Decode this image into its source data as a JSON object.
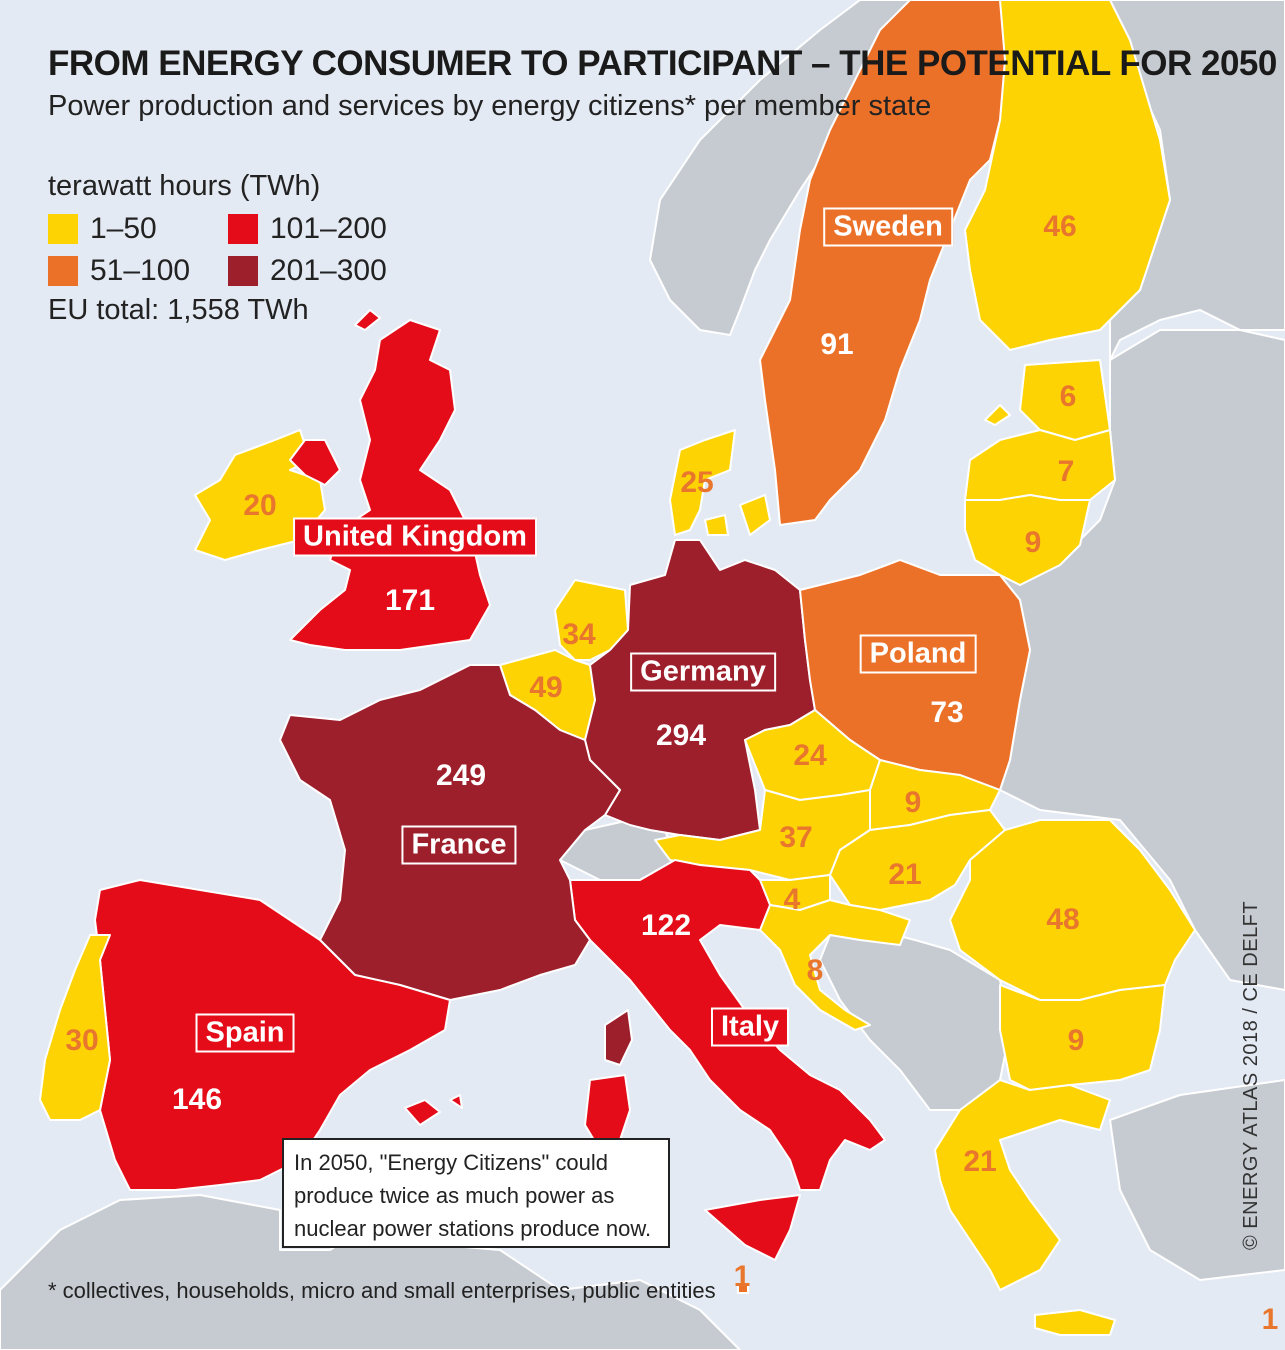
{
  "title": "FROM ENERGY CONSUMER TO PARTICIPANT – THE POTENTIAL FOR 2050",
  "subtitle": "Power production and services by energy citizens* per member state",
  "legend": {
    "title": "terawatt hours (TWh)",
    "items": [
      {
        "label": "1–50",
        "color": "#fed304"
      },
      {
        "label": "51–100",
        "color": "#ec7128"
      },
      {
        "label": "101–200",
        "color": "#e40c18"
      },
      {
        "label": "201–300",
        "color": "#9e1f2c"
      }
    ],
    "eu_total": "EU total: 1,558 TWh"
  },
  "colors": {
    "sea": "#e4eaf3",
    "non_eu_land": "#c6cbd1",
    "border": "#ffffff"
  },
  "country_labels": {
    "uk": "United Kingdom",
    "sweden": "Sweden",
    "germany": "Germany",
    "poland": "Poland",
    "france": "France",
    "spain": "Spain",
    "italy": "Italy"
  },
  "values": {
    "uk": "171",
    "ireland": "20",
    "sweden": "91",
    "finland": "46",
    "estonia": "6",
    "latvia": "7",
    "lithuania": "9",
    "denmark": "25",
    "netherlands": "34",
    "belgium": "49",
    "germany": "294",
    "poland": "73",
    "czechia": "24",
    "slovakia": "9",
    "austria": "37",
    "hungary": "21",
    "slovenia": "4",
    "croatia": "8",
    "romania": "48",
    "bulgaria": "9",
    "greece": "21",
    "france": "249",
    "spain": "146",
    "portugal": "30",
    "italy": "122",
    "malta": "1",
    "cyprus": "1"
  },
  "note": "In 2050, \"Energy Citizens\" could produce twice as much power as nuclear power stations produce now.",
  "footnote": "* collectives, households, micro and small enterprises, public entities",
  "credit": "© ENERGY ATLAS 2018 / CE DELFT"
}
